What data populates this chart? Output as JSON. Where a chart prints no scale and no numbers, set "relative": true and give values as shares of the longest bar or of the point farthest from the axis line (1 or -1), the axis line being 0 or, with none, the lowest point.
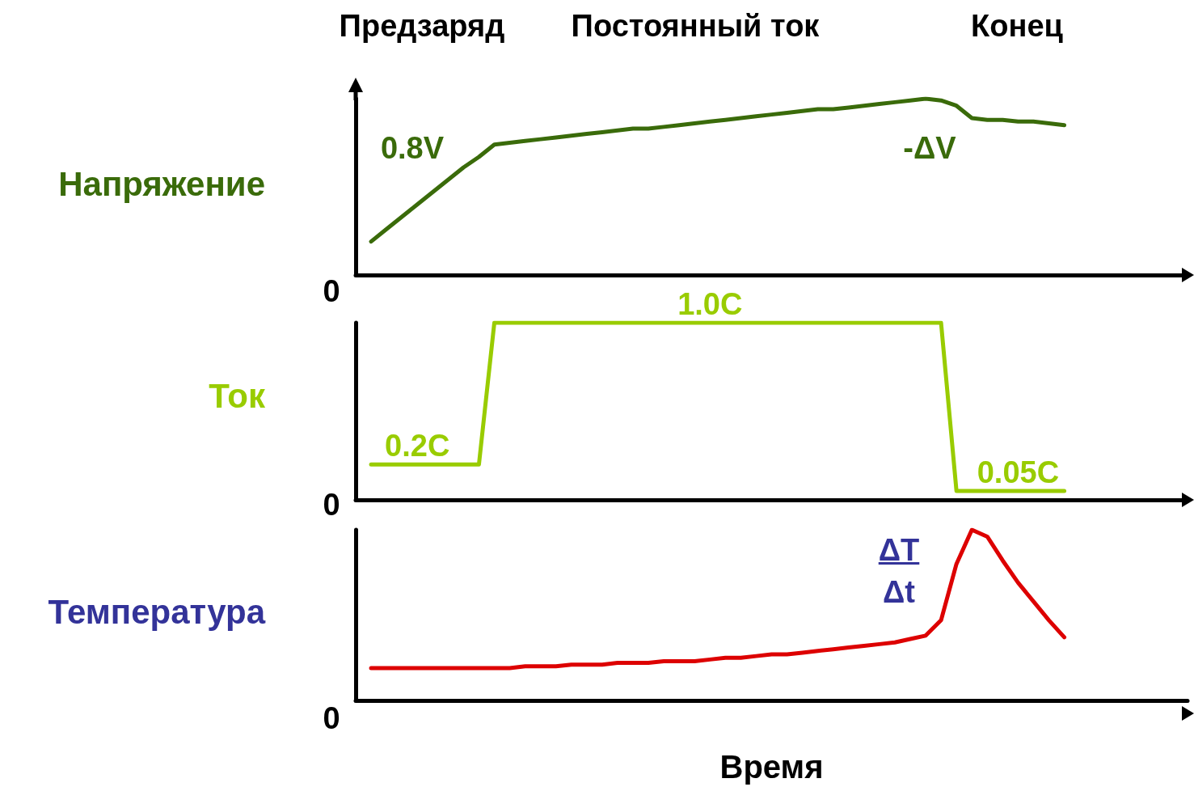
{
  "chart_data": [
    {
      "type": "line",
      "relative": true,
      "ylabel": "Напряжение",
      "annotations": [
        "Предзаряд",
        "Постоянный ток",
        "Конец",
        "0.8V",
        "-ΔV",
        "0"
      ],
      "categories": [
        null,
        null,
        null,
        null,
        null,
        null,
        null,
        null,
        null,
        null,
        null,
        null,
        null,
        null,
        null,
        null,
        null,
        null,
        null,
        null,
        null,
        null,
        null,
        null,
        null,
        null,
        null,
        null,
        null,
        null,
        null,
        null,
        null,
        null,
        null,
        null,
        null,
        null,
        null,
        null,
        null,
        null,
        null,
        null,
        null,
        null,
        null,
        null,
        null,
        null,
        null,
        null,
        null,
        null,
        null
      ],
      "series": [
        {
          "color": "#3a6b0a",
          "values": [
            null,
            0.19,
            0.26,
            0.33,
            0.4,
            0.47,
            0.54,
            0.61,
            0.67,
            0.74,
            0.75,
            0.76,
            0.77,
            0.78,
            0.79,
            0.8,
            0.81,
            0.82,
            0.83,
            0.83,
            0.84,
            0.85,
            0.86,
            0.87,
            0.88,
            0.89,
            0.9,
            0.91,
            0.92,
            0.93,
            0.94,
            0.94,
            0.95,
            0.96,
            0.97,
            0.98,
            0.99,
            1,
            0.99,
            0.96,
            0.89,
            0.88,
            0.88,
            0.87,
            0.87,
            0.86,
            0.85,
            null,
            null,
            null,
            null,
            null,
            null,
            null,
            null
          ]
        }
      ]
    },
    {
      "type": "line",
      "ylim": [
        0,
        1
      ],
      "tick_labels": false,
      "ylabel": "Ток",
      "annotations": [
        "0"
      ],
      "categories": [
        null,
        null,
        null,
        null,
        null,
        null,
        null,
        null,
        null,
        null,
        null,
        null,
        null,
        null,
        null,
        null,
        null,
        null,
        null,
        null,
        null,
        null,
        null,
        null,
        null,
        null,
        null,
        null,
        null,
        null,
        null,
        null,
        null,
        null,
        null,
        null,
        null,
        null,
        null,
        null,
        null,
        null,
        null,
        null,
        null,
        null,
        null,
        null,
        null,
        null,
        null,
        null,
        null,
        null,
        null
      ],
      "series": [
        {
          "color": "#99cc00",
          "values": [
            null,
            0.2,
            0.2,
            0.2,
            0.2,
            0.2,
            0.2,
            0.2,
            0.2,
            1.0,
            1.0,
            1.0,
            1.0,
            1.0,
            1.0,
            1.0,
            1.0,
            1.0,
            1.0,
            1.0,
            1.0,
            1.0,
            1.0,
            1.0,
            1.0,
            1.0,
            1.0,
            1.0,
            1.0,
            1.0,
            1.0,
            1.0,
            1.0,
            1.0,
            1.0,
            1.0,
            1.0,
            1.0,
            1.0,
            0.05,
            0.05,
            0.05,
            0.05,
            0.05,
            0.05,
            0.05,
            0.05,
            null,
            null,
            null,
            null,
            null,
            null,
            null,
            null
          ],
          "value_labels": [
            null,
            null,
            null,
            null,
            "0.2C",
            null,
            null,
            null,
            null,
            null,
            null,
            null,
            null,
            null,
            null,
            null,
            null,
            null,
            null,
            null,
            null,
            null,
            null,
            "1.0C",
            null,
            null,
            null,
            null,
            null,
            null,
            null,
            null,
            null,
            null,
            null,
            null,
            null,
            null,
            null,
            null,
            null,
            null,
            null,
            "0.05C",
            null,
            null,
            null,
            null,
            null,
            null,
            null,
            null,
            null,
            null,
            null
          ]
        }
      ]
    },
    {
      "type": "line",
      "relative": true,
      "ylabel": "Температура",
      "xlabel": "Время",
      "annotations": [
        "ΔT",
        "Δt",
        "0"
      ],
      "categories": [
        null,
        null,
        null,
        null,
        null,
        null,
        null,
        null,
        null,
        null,
        null,
        null,
        null,
        null,
        null,
        null,
        null,
        null,
        null,
        null,
        null,
        null,
        null,
        null,
        null,
        null,
        null,
        null,
        null,
        null,
        null,
        null,
        null,
        null,
        null,
        null,
        null,
        null,
        null,
        null,
        null,
        null,
        null,
        null,
        null,
        null,
        null,
        null,
        null,
        null,
        null,
        null,
        null,
        null,
        null
      ],
      "series": [
        {
          "color": "#dd0000",
          "values": [
            null,
            0.19,
            0.19,
            0.19,
            0.19,
            0.19,
            0.19,
            0.19,
            0.19,
            0.19,
            0.19,
            0.2,
            0.2,
            0.2,
            0.21,
            0.21,
            0.21,
            0.22,
            0.22,
            0.22,
            0.23,
            0.23,
            0.23,
            0.24,
            0.25,
            0.25,
            0.26,
            0.27,
            0.27,
            0.28,
            0.29,
            0.3,
            0.31,
            0.32,
            0.33,
            0.34,
            0.36,
            0.38,
            0.47,
            0.8,
            1,
            0.96,
            0.82,
            0.69,
            0.58,
            0.47,
            0.37,
            null,
            null,
            null,
            null,
            null,
            null,
            null,
            null
          ]
        }
      ]
    }
  ]
}
